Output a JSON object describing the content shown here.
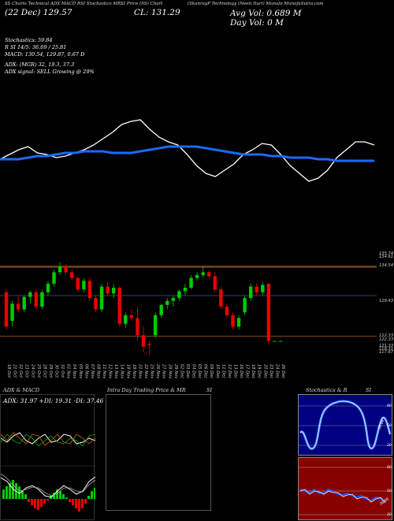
{
  "header": {
    "codes": "SS  Charts  Technical  ADX  MACD  RSI  Stochastics  MRSI  Price  (SS) Chart",
    "title": "(SkanrayP Technology (Neeti Ituri) Munafa  MunafaSutra.com",
    "date": "(22  Dec)  129.57",
    "close": "CL: 131.29",
    "avg_vol": "Avg Vol: 0.689 M",
    "day_vol": "Day Vol: 0  M"
  },
  "indicators": {
    "stochastics": "Stochastics: 59.84",
    "rsi": "R                SI 14/5: 36.69 / 25.81",
    "macd": "MACD: 130.54, 129.87, 0.67 D",
    "adx": "ADX:                           (MGR) 32, 19.3, 37.3",
    "adx_signal": "ADX  signal: SELL Growing @ 29%"
  },
  "price_labels": [
    "135.74",
    "134.61",
    "134.54",
    "129.43",
    "122.33",
    "122.33",
    "121.33",
    "118.31",
    "117.67"
  ],
  "dates": [
    "18 Oct",
    "21 Oct",
    "22 Oct",
    "23 Oct",
    "24 Oct",
    "25 Oct",
    "28 Oct",
    "29 Oct",
    "30 Oct",
    "31 Oct",
    "01 Nov",
    "04 Nov",
    "05 Nov",
    "06 Nov",
    "07 Nov",
    "08 Nov",
    "11 Nov",
    "12 Nov",
    "13 Nov",
    "14 Nov",
    "18 Nov",
    "19 Nov",
    "21 Nov",
    "22 Nov",
    "25 Nov",
    "26 Nov",
    "27 Nov",
    "28 Nov",
    "29 Nov",
    "02 Dec",
    "03 Dec",
    "04 Dec",
    "05 Dec",
    "06 Dec",
    "09 Dec",
    "10 Dec",
    "11 Dec",
    "12 Dec",
    "13 Dec",
    "16 Dec",
    "17 Dec",
    "18 Dec",
    "19 Dec",
    "20 Dec",
    "23 Dec",
    "24 Dec",
    "26 Dec"
  ],
  "panels": {
    "adx_title": "ADX  & MACD",
    "adx_value": "ADX: 31.97  +DI: 19.31  -DI: 37.46",
    "intraday_title": "Intra  Day Trading Price  & MR",
    "intraday_si": "SI",
    "stoch_title": "Stochastics & R",
    "stoch_si": "SI",
    "stoch_labels": [
      "80",
      "50",
      "20"
    ],
    "stoch_value": "59.84",
    "rsi_labels": [
      "80",
      "50",
      "20"
    ],
    "rsi_value": "36.69"
  },
  "colors": {
    "bull": "#00cc00",
    "bear": "#ee0000",
    "ma": "#1a6aff",
    "navy": "#000080",
    "rsi_bg": "#880000"
  },
  "chart_data": {
    "type": "candlestick",
    "categories": [
      "18 Oct",
      "21 Oct",
      "22 Oct",
      "23 Oct",
      "24 Oct",
      "25 Oct",
      "28 Oct",
      "29 Oct",
      "30 Oct",
      "31 Oct",
      "01 Nov",
      "04 Nov",
      "05 Nov",
      "06 Nov",
      "07 Nov",
      "08 Nov",
      "11 Nov",
      "12 Nov",
      "13 Nov",
      "14 Nov",
      "18 Nov",
      "19 Nov",
      "21 Nov",
      "22 Nov",
      "25 Nov",
      "26 Nov",
      "27 Nov",
      "28 Nov",
      "29 Nov",
      "02 Dec",
      "03 Dec",
      "04 Dec",
      "05 Dec",
      "06 Dec",
      "09 Dec",
      "10 Dec",
      "11 Dec",
      "12 Dec",
      "13 Dec",
      "16 Dec",
      "17 Dec",
      "18 Dec",
      "19 Dec",
      "20 Dec",
      "23 Dec",
      "24 Dec",
      "26 Dec"
    ],
    "candles": [
      [
        130.0,
        130.5,
        123.5,
        124.0
      ],
      [
        125.0,
        128.5,
        124.0,
        128.0
      ],
      [
        128.0,
        129.5,
        126.5,
        127.0
      ],
      [
        127.0,
        129.5,
        126.5,
        129.2
      ],
      [
        129.2,
        130.3,
        128.0,
        130.0
      ],
      [
        130.0,
        130.5,
        127.0,
        127.5
      ],
      [
        127.5,
        130.5,
        127.0,
        130.0
      ],
      [
        130.0,
        132.0,
        129.5,
        131.5
      ],
      [
        131.5,
        134.0,
        131.0,
        133.5
      ],
      [
        133.5,
        135.3,
        133.0,
        134.5
      ],
      [
        134.5,
        135.0,
        133.0,
        133.5
      ],
      [
        133.5,
        134.0,
        132.0,
        132.5
      ],
      [
        132.5,
        132.8,
        130.0,
        130.5
      ],
      [
        130.5,
        132.5,
        130.0,
        132.0
      ],
      [
        132.0,
        132.5,
        128.5,
        129.0
      ],
      [
        129.0,
        129.5,
        126.5,
        127.0
      ],
      [
        127.0,
        131.5,
        126.5,
        131.0
      ],
      [
        131.0,
        131.8,
        129.5,
        129.8
      ],
      [
        129.8,
        131.5,
        129.0,
        130.8
      ],
      [
        130.8,
        131.0,
        124.0,
        124.5
      ],
      [
        124.5,
        126.5,
        123.8,
        126.0
      ],
      [
        126.0,
        127.0,
        125.0,
        125.5
      ],
      [
        125.5,
        127.5,
        121.5,
        122.5
      ],
      [
        122.5,
        124.0,
        119.5,
        120.5
      ],
      [
        121.0,
        121.5,
        119.0,
        120.8
      ],
      [
        122.5,
        126.5,
        122.0,
        126.0
      ],
      [
        126.0,
        128.0,
        125.5,
        127.8
      ],
      [
        127.8,
        129.0,
        127.0,
        128.5
      ],
      [
        128.5,
        129.5,
        127.5,
        129.0
      ],
      [
        129.0,
        130.5,
        128.5,
        130.2
      ],
      [
        130.2,
        131.5,
        129.5,
        130.8
      ],
      [
        130.8,
        133.0,
        130.5,
        132.5
      ],
      [
        132.5,
        133.5,
        132.0,
        133.0
      ],
      [
        133.0,
        134.5,
        132.5,
        133.5
      ],
      [
        133.5,
        133.8,
        132.5,
        132.8
      ],
      [
        132.8,
        133.5,
        130.0,
        130.5
      ],
      [
        130.5,
        131.0,
        127.0,
        127.5
      ],
      [
        127.5,
        128.0,
        125.5,
        126.0
      ],
      [
        126.0,
        126.5,
        123.5,
        124.0
      ],
      [
        124.0,
        126.0,
        123.5,
        125.5
      ],
      [
        126.5,
        129.5,
        126.0,
        129.0
      ],
      [
        129.0,
        131.5,
        128.5,
        131.0
      ],
      [
        131.0,
        131.5,
        129.5,
        130.0
      ],
      [
        130.0,
        131.8,
        129.5,
        131.3
      ],
      [
        131.5,
        131.5,
        121.0,
        121.5
      ],
      [
        121.5,
        121.5,
        121.5,
        121.5
      ],
      [
        121.5,
        121.5,
        121.5,
        121.5
      ]
    ],
    "hlines": [
      122.33,
      129.43,
      134.54
    ],
    "ylim": [
      118,
      137
    ],
    "ma_values": [
      49,
      49,
      49,
      50,
      51,
      51,
      52,
      53,
      53,
      54,
      54,
      54,
      53,
      53,
      53,
      54,
      55,
      56,
      57,
      57,
      57,
      57,
      56,
      55,
      54,
      53,
      52,
      52,
      52,
      51,
      51,
      50,
      50,
      50,
      49,
      49,
      48,
      48,
      48,
      48,
      48
    ],
    "oscillator_values": [
      49,
      52,
      55,
      57,
      53,
      52,
      50,
      51,
      53,
      55,
      58,
      62,
      66,
      71,
      73,
      74,
      68,
      63,
      60,
      58,
      52,
      45,
      40,
      38,
      42,
      46,
      52,
      55,
      59,
      58,
      52,
      45,
      40,
      35,
      37,
      42,
      50,
      55,
      60,
      60,
      58
    ]
  }
}
